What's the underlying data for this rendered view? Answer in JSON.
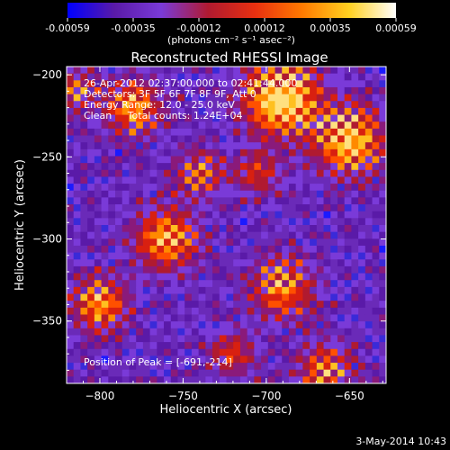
{
  "chart_data": {
    "type": "heatmap",
    "title": "Reconstructed RHESSI Image",
    "xlabel": "Heliocentric X (arcsec)",
    "ylabel": "Heliocentric Y (arcsec)",
    "xlim": [
      -820,
      -628
    ],
    "ylim": [
      -388,
      -195
    ],
    "x_ticks": [
      -800,
      -750,
      -700,
      -650
    ],
    "y_ticks": [
      -350,
      -300,
      -250,
      -200
    ],
    "colorbar": {
      "unit_label": "(photons cm⁻² s⁻¹ asec⁻²)",
      "range": [
        -0.00059,
        0.00059
      ],
      "tick_labels": [
        "-0.00059",
        "-0.00035",
        "-0.00012",
        "0.00012",
        "0.00035",
        "0.00059"
      ],
      "colors": [
        "#0000ff",
        "#5a1aa8",
        "#7a3ad8",
        "#b01a30",
        "#e83010",
        "#ff7a00",
        "#ffd020",
        "#ffffff"
      ]
    },
    "annotations": [
      "26-Apr-2012 02:37:00.000 to 02:41:44.000",
      "Detectors: 3F 5F 6F 7F 8F 9F, Att 0",
      "Energy Range: 12.0 - 25.0 keV",
      "Clean     Total counts: 1.24E+04"
    ],
    "peak_text": "Position of Peak = [-691,-214]",
    "peak": [
      -691,
      -214
    ]
  },
  "footer": {
    "date": "3-May-2014 10:43"
  }
}
